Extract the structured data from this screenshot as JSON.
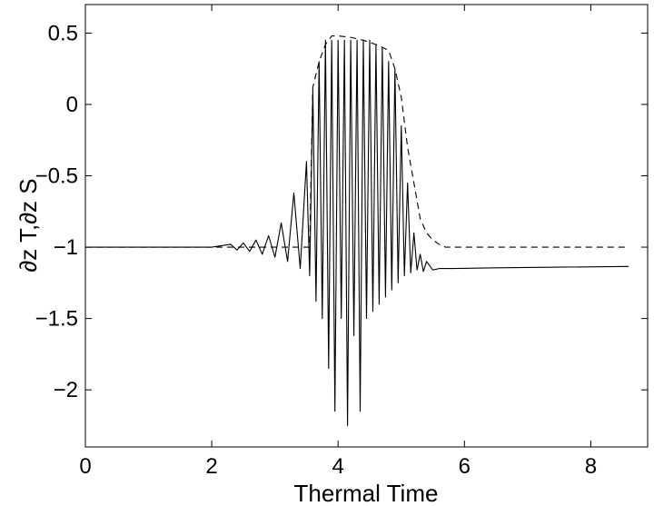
{
  "chart_data": {
    "type": "line",
    "title": "",
    "xlabel": "Thermal Time",
    "ylabel": "∂z T,∂z S",
    "xlim": [
      0,
      8.9
    ],
    "ylim": [
      -2.4,
      0.7
    ],
    "xticks": [
      0,
      2,
      4,
      6,
      8
    ],
    "xtick_labels": [
      "0",
      "2",
      "4",
      "6",
      "8"
    ],
    "yticks": [
      0.5,
      0,
      -0.5,
      -1,
      -1.5,
      -2
    ],
    "ytick_labels": [
      "0.5",
      "0",
      "−0.5",
      "−1",
      "−1.5",
      "−2"
    ],
    "grid": false,
    "legend": "none",
    "series": [
      {
        "style": "solid",
        "x": [
          0,
          2.0,
          2.3,
          2.4,
          2.5,
          2.6,
          2.7,
          2.8,
          2.9,
          3.0,
          3.1,
          3.2,
          3.3,
          3.4,
          3.5,
          3.55,
          3.6,
          3.65,
          3.7,
          3.75,
          3.8,
          3.85,
          3.9,
          3.95,
          4.0,
          4.05,
          4.1,
          4.15,
          4.2,
          4.25,
          4.3,
          4.35,
          4.4,
          4.45,
          4.5,
          4.55,
          4.6,
          4.65,
          4.7,
          4.75,
          4.8,
          4.85,
          4.9,
          4.95,
          5.0,
          5.05,
          5.1,
          5.15,
          5.2,
          5.25,
          5.3,
          5.35,
          5.4,
          5.5,
          5.6,
          5.8,
          6.5,
          7.5,
          8.6
        ],
        "y": [
          -1.0,
          -1.0,
          -0.98,
          -1.02,
          -0.97,
          -1.03,
          -0.95,
          -1.05,
          -0.92,
          -1.07,
          -0.83,
          -1.1,
          -0.62,
          -1.15,
          -0.4,
          -1.2,
          0.1,
          -1.38,
          0.3,
          -1.5,
          0.45,
          -1.85,
          0.45,
          -2.15,
          0.45,
          -1.5,
          0.45,
          -2.25,
          0.45,
          -1.62,
          0.45,
          -2.15,
          0.45,
          -1.5,
          0.45,
          -1.45,
          0.42,
          -1.4,
          0.4,
          -1.35,
          0.3,
          -1.3,
          0.25,
          -1.25,
          -0.15,
          -1.2,
          -0.55,
          -1.18,
          -0.9,
          -1.16,
          -1.05,
          -1.17,
          -1.1,
          -1.16,
          -1.15,
          -1.15,
          -1.145,
          -1.14,
          -1.135
        ]
      },
      {
        "style": "dashed",
        "x": [
          0,
          3.55,
          3.6,
          3.7,
          3.8,
          3.9,
          4.0,
          4.2,
          4.4,
          4.6,
          4.8,
          4.9,
          5.0,
          5.1,
          5.2,
          5.3,
          5.4,
          5.5,
          5.6,
          5.7,
          8.6
        ],
        "y": [
          -1.0,
          -1.0,
          0.12,
          0.3,
          0.42,
          0.48,
          0.48,
          0.47,
          0.45,
          0.42,
          0.38,
          0.25,
          0.05,
          -0.3,
          -0.55,
          -0.8,
          -0.9,
          -0.95,
          -0.98,
          -1.0,
          -1.0
        ]
      }
    ]
  }
}
